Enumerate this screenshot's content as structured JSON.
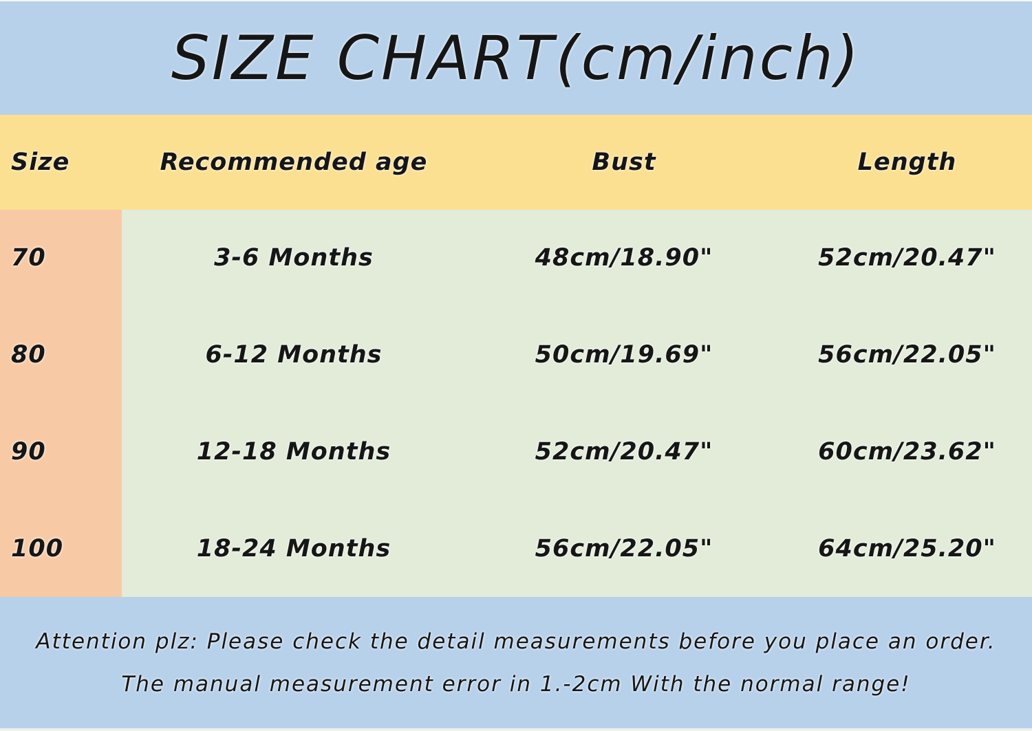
{
  "title": "SIZE CHART(cm/inch)",
  "table": {
    "columns": [
      "Size",
      "Recommended age",
      "Bust",
      "Length"
    ],
    "rows": [
      {
        "size": "70",
        "age": "3-6 Months",
        "bust": "48cm/18.90\"",
        "length": "52cm/20.47\""
      },
      {
        "size": "80",
        "age": "6-12 Months",
        "bust": "50cm/19.69\"",
        "length": "56cm/22.05\""
      },
      {
        "size": "90",
        "age": "12-18 Months",
        "bust": "52cm/20.47\"",
        "length": "60cm/23.62\""
      },
      {
        "size": "100",
        "age": "18-24 Months",
        "bust": "56cm/22.05\"",
        "length": "64cm/25.20\""
      }
    ]
  },
  "footer": {
    "line1": "Attention plz:  Please check the detail measurements before you place an order.",
    "line2": "The manual measurement error in 1.-2cm With the normal range!"
  },
  "colors": {
    "band_blue": "#b7d1eb",
    "band_yellow": "#fbe092",
    "cell_peach": "#f7caa5",
    "cell_green": "#e2ecd9",
    "text": "#161616"
  },
  "chart_data": {
    "type": "table",
    "title": "SIZE CHART(cm/inch)",
    "columns": [
      "Size",
      "Recommended age",
      "Bust",
      "Length"
    ],
    "rows": [
      [
        "70",
        "3-6 Months",
        "48cm/18.90\"",
        "52cm/20.47\""
      ],
      [
        "80",
        "6-12 Months",
        "50cm/19.69\"",
        "56cm/22.05\""
      ],
      [
        "90",
        "12-18 Months",
        "52cm/20.47\"",
        "60cm/23.62\""
      ],
      [
        "100",
        "18-24 Months",
        "56cm/22.05\"",
        "64cm/25.20\""
      ]
    ],
    "annotations": [
      "Attention plz:  Please check the detail measurements before you place an order.",
      "The manual measurement error in 1.-2cm With the normal range!"
    ]
  }
}
